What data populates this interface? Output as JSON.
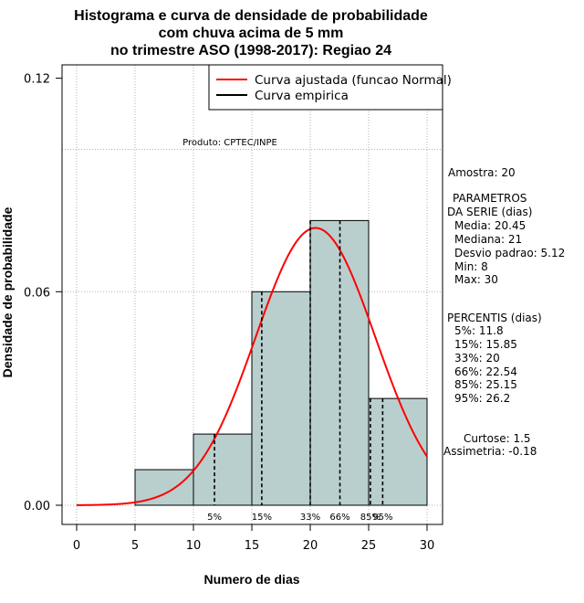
{
  "chart_data": {
    "type": "histogram",
    "title": [
      "Histograma e curva de densidade de probabilidade",
      "com chuva acima de 5 mm",
      "no trimestre ASO (1998-2017): Regiao 24"
    ],
    "xlabel": "Numero de dias",
    "ylabel": "Densidade de probabilidade",
    "xlim": [
      0,
      30
    ],
    "ylim": [
      0,
      0.12
    ],
    "x_ticks": [
      0,
      5,
      10,
      15,
      20,
      25,
      30
    ],
    "y_ticks": [
      "0.00",
      "0.06",
      "0.12"
    ],
    "bins": [
      {
        "from": 5,
        "to": 10,
        "density": 0.01
      },
      {
        "from": 10,
        "to": 15,
        "density": 0.02
      },
      {
        "from": 15,
        "to": 20,
        "density": 0.06
      },
      {
        "from": 20,
        "to": 25,
        "density": 0.08
      },
      {
        "from": 25,
        "to": 30,
        "density": 0.03
      }
    ],
    "normal_fit": {
      "mean": 20.45,
      "sd": 5.12,
      "color": "#ff0000"
    },
    "bar_fill": "#b9cfce",
    "percentiles": [
      {
        "label": "5%",
        "value": 11.8
      },
      {
        "label": "15%",
        "value": 15.85
      },
      {
        "label": "33%",
        "value": 20
      },
      {
        "label": "66%",
        "value": 22.54
      },
      {
        "label": "85%",
        "value": 25.15
      },
      {
        "label": "95%",
        "value": 26.2
      }
    ],
    "legend": [
      {
        "label": "Curva ajustada (funcao Normal)",
        "color": "#ff0000"
      },
      {
        "label": "Curva empirica",
        "color": "#000000"
      }
    ],
    "legend_position": "top-right",
    "grid_lines_y": [
      0.06,
      0.1
    ]
  },
  "watermark": "Produto: CPTEC/INPE",
  "stats": {
    "amostra": "Amostra: 20",
    "param_title1": "PARAMETROS",
    "param_title2": "DA SERIE (dias)",
    "params": [
      "Media: 20.45",
      "Mediana: 21",
      "Desvio padrao: 5.12",
      "Min: 8",
      "Max: 30"
    ],
    "perc_title": "PERCENTIS (dias)",
    "percs": [
      "5%: 11.8",
      "15%: 15.85",
      "33%: 20",
      "66%: 22.54",
      "85%: 25.15",
      "95%: 26.2"
    ],
    "curtose": "Curtose: 1.5",
    "assimetria": "Assimetria: -0.18"
  }
}
